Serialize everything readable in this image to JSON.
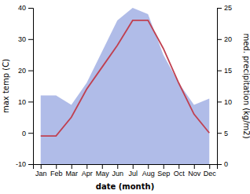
{
  "chart_data": {
    "type": "line",
    "categories": [
      "Jan",
      "Feb",
      "Mar",
      "Apr",
      "May",
      "Jun",
      "Jul",
      "Aug",
      "Sep",
      "Oct",
      "Nov",
      "Dec"
    ],
    "series": [
      {
        "type": "area",
        "color": "#b0bce8",
        "values": [
          12,
          12,
          9,
          16,
          26,
          36,
          40,
          38,
          25,
          16,
          9,
          11
        ]
      },
      {
        "type": "line",
        "color": "#c04050",
        "values": [
          -1,
          -1,
          5,
          14,
          21,
          28,
          36,
          36,
          27,
          16,
          6,
          0
        ]
      }
    ],
    "xlabel": "date (month)",
    "ylabel": "max temp (C)",
    "y2label": "med. precipitation (kg/m2)",
    "ylim": [
      -10,
      40
    ],
    "yticks": [
      -10,
      0,
      10,
      20,
      30,
      40
    ],
    "y2lim": [
      0,
      25
    ],
    "y2ticks": [
      0,
      5,
      10,
      15,
      20,
      25
    ],
    "grid": false
  }
}
